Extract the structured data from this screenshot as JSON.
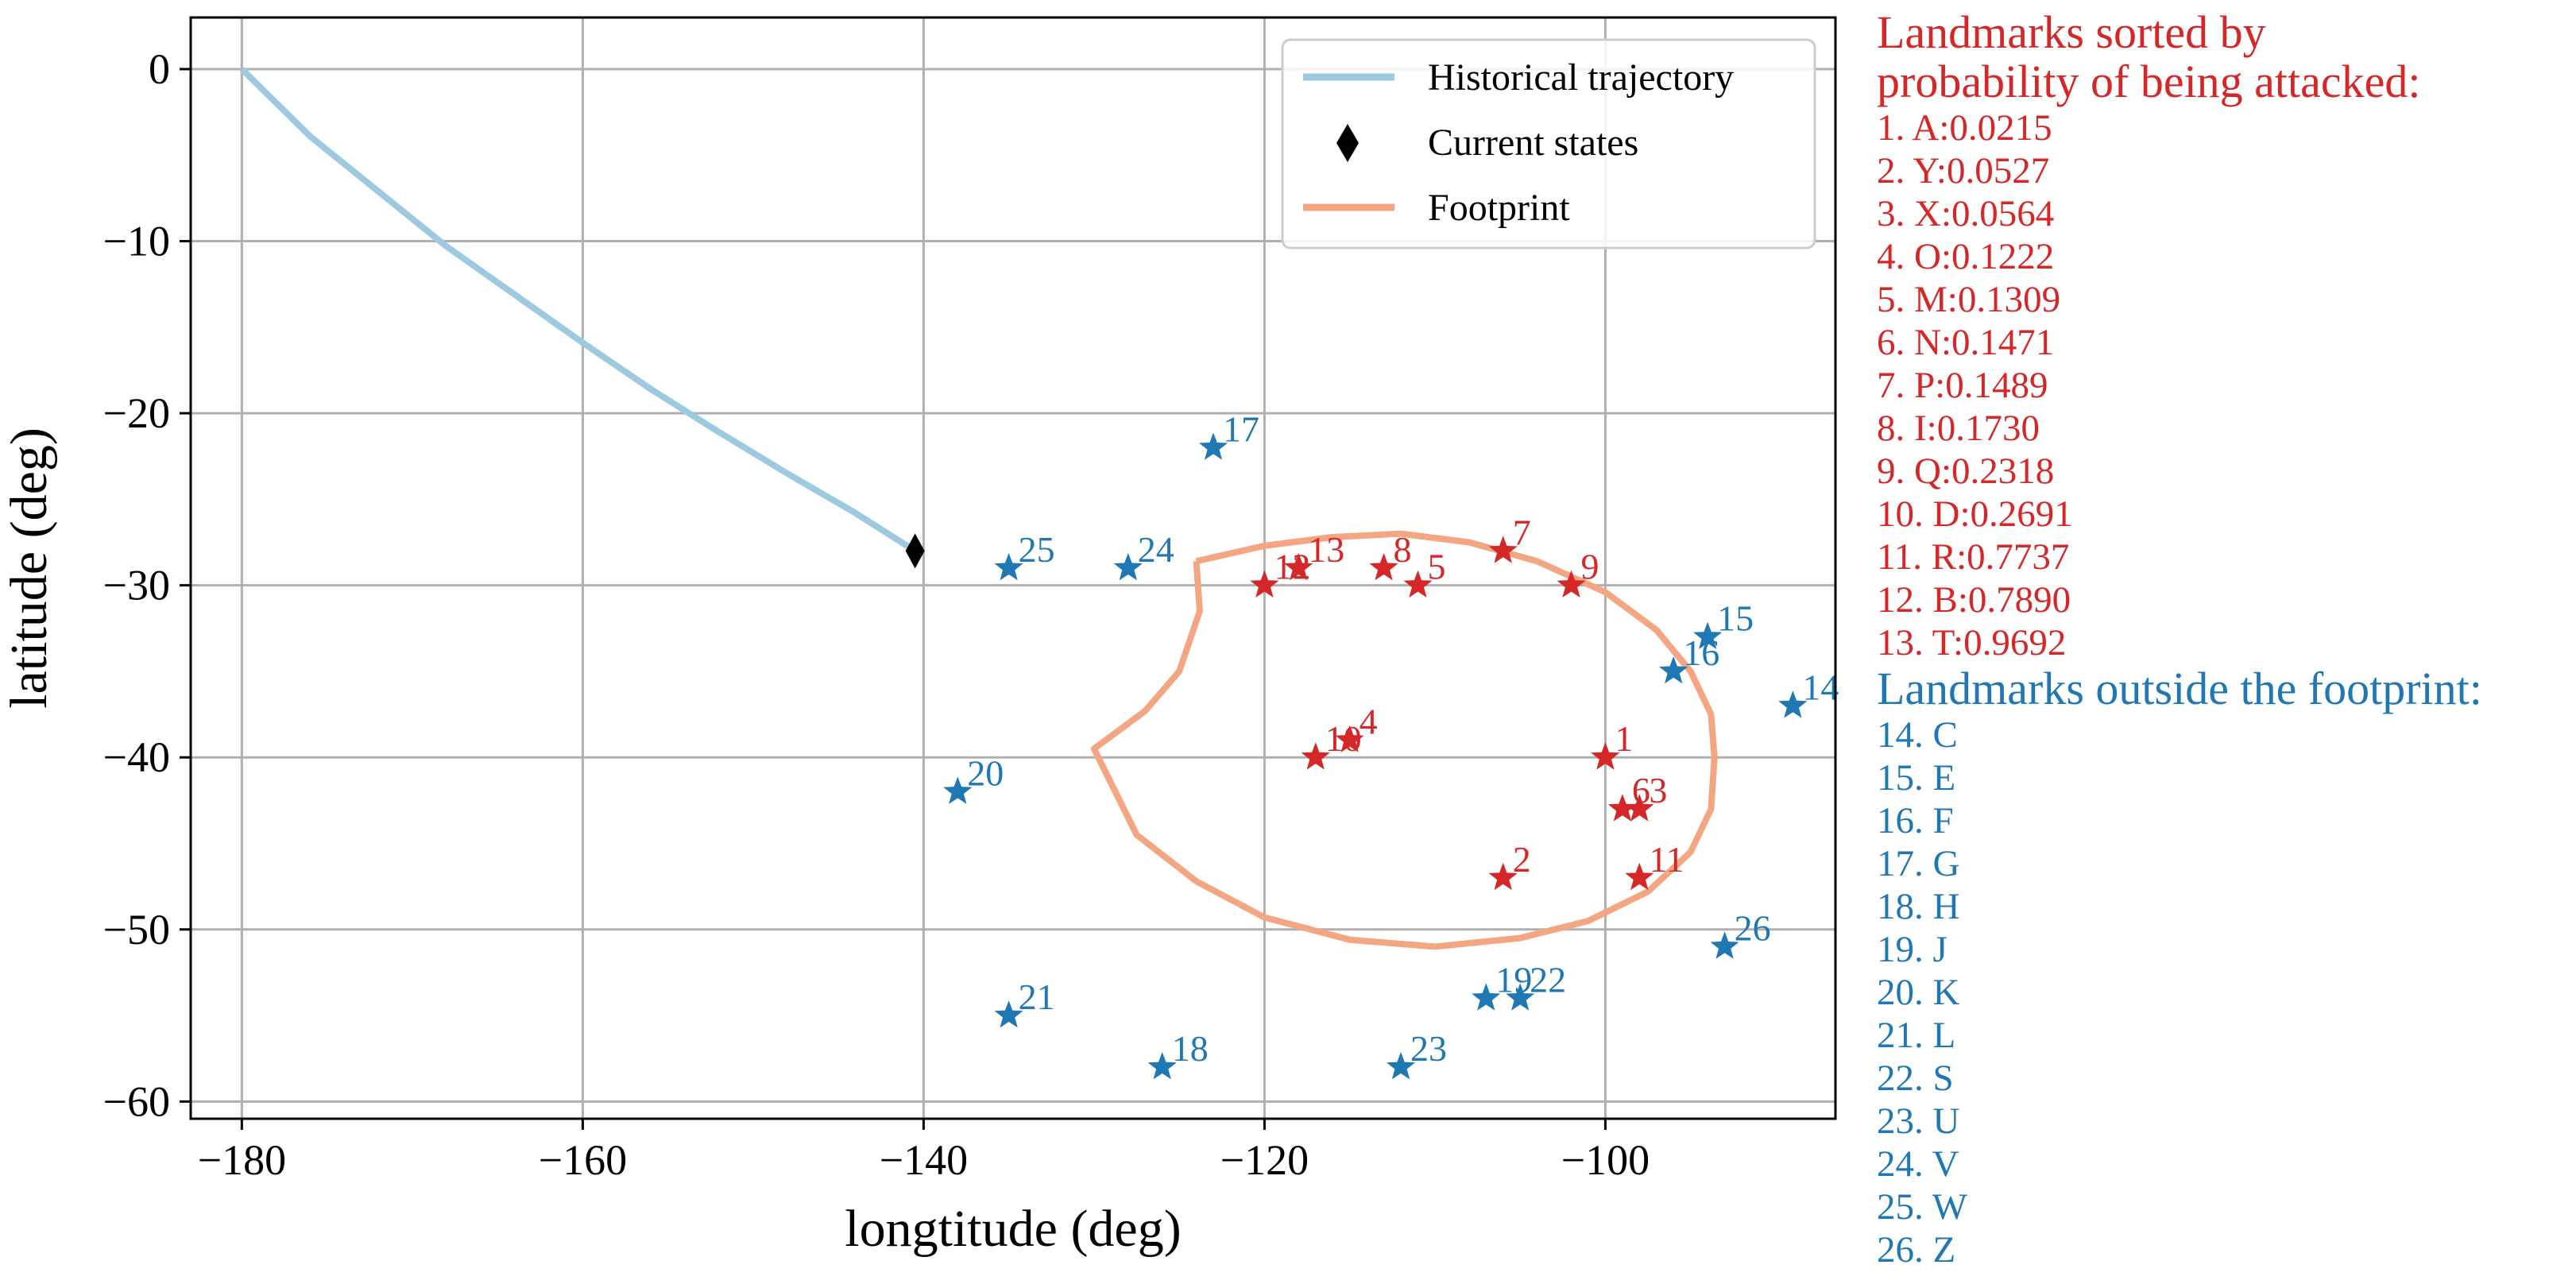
{
  "colors": {
    "inside": "#d62728",
    "outside": "#1f77b4",
    "trajectory": "#9ecae1",
    "footprint": "#f4a582",
    "current": "#000000",
    "grid": "#b0b0b0"
  },
  "sidebar": {
    "inside_title_line1": "Landmarks sorted by",
    "inside_title_line2": "probability of being attacked:",
    "inside_items": [
      "1. A:0.0215",
      "2. Y:0.0527",
      "3. X:0.0564",
      "4. O:0.1222",
      "5. M:0.1309",
      "6. N:0.1471",
      "7. P:0.1489",
      "8. I:0.1730",
      "9. Q:0.2318",
      "10. D:0.2691",
      "11. R:0.7737",
      "12. B:0.7890",
      "13. T:0.9692"
    ],
    "outside_title": "Landmarks outside the footprint:",
    "outside_items": [
      "14. C",
      "15. E",
      "16. F",
      "17. G",
      "18. H",
      "19. J",
      "20. K",
      "21. L",
      "22. S",
      "23. U",
      "24. V",
      "25. W",
      "26. Z"
    ]
  },
  "chart_data": {
    "type": "scatter",
    "xlabel": "longtitude (deg)",
    "ylabel": "latitude (deg)",
    "xlim": [
      -183,
      -86.5
    ],
    "ylim": [
      -61,
      3
    ],
    "xticks": [
      -180,
      -160,
      -140,
      -120,
      -100
    ],
    "yticks": [
      0,
      -10,
      -20,
      -30,
      -40,
      -50,
      -60
    ],
    "grid": true,
    "legend_position": "top-right",
    "legend": [
      {
        "label": "Historical trajectory",
        "kind": "line",
        "color": "#9ecae1"
      },
      {
        "label": "Current states",
        "kind": "diamond",
        "color": "#000000"
      },
      {
        "label": "Footprint",
        "kind": "line",
        "color": "#f4a582"
      }
    ],
    "trajectory": [
      [
        -180,
        0
      ],
      [
        -176,
        -3.9
      ],
      [
        -172,
        -7.1
      ],
      [
        -168,
        -10.3
      ],
      [
        -164,
        -13.1
      ],
      [
        -160,
        -15.9
      ],
      [
        -156,
        -18.6
      ],
      [
        -152,
        -21.1
      ],
      [
        -148,
        -23.5
      ],
      [
        -144,
        -25.8
      ],
      [
        -140.5,
        -28
      ]
    ],
    "current_state": [
      -140.5,
      -28
    ],
    "footprint": [
      [
        -124,
        -28.6
      ],
      [
        -120,
        -27.7
      ],
      [
        -116,
        -27.2
      ],
      [
        -112,
        -27
      ],
      [
        -108,
        -27.5
      ],
      [
        -104,
        -28.6
      ],
      [
        -100,
        -30.4
      ],
      [
        -97,
        -32.6
      ],
      [
        -95,
        -35
      ],
      [
        -93.8,
        -37.5
      ],
      [
        -93.6,
        -40
      ],
      [
        -93.8,
        -43
      ],
      [
        -95,
        -45.5
      ],
      [
        -97.5,
        -47.8
      ],
      [
        -101,
        -49.5
      ],
      [
        -105,
        -50.5
      ],
      [
        -110,
        -51
      ],
      [
        -115,
        -50.6
      ],
      [
        -120,
        -49.3
      ],
      [
        -124,
        -47.2
      ],
      [
        -127.5,
        -44.5
      ],
      [
        -130,
        -39.5
      ],
      [
        -127,
        -37.3
      ],
      [
        -125,
        -35
      ],
      [
        -123.8,
        -31.5
      ],
      [
        -124,
        -28.6
      ]
    ],
    "landmarks_inside": [
      {
        "label": "1",
        "x": -100,
        "y": -40
      },
      {
        "label": "2",
        "x": -106,
        "y": -47
      },
      {
        "label": "3",
        "x": -98,
        "y": -43
      },
      {
        "label": "4",
        "x": -115,
        "y": -39
      },
      {
        "label": "5",
        "x": -111,
        "y": -30
      },
      {
        "label": "6",
        "x": -99,
        "y": -43
      },
      {
        "label": "7",
        "x": -106,
        "y": -28
      },
      {
        "label": "8",
        "x": -113,
        "y": -29
      },
      {
        "label": "9",
        "x": -102,
        "y": -30
      },
      {
        "label": "10",
        "x": -117,
        "y": -40
      },
      {
        "label": "11",
        "x": -98,
        "y": -47
      },
      {
        "label": "12",
        "x": -120,
        "y": -30
      },
      {
        "label": "13",
        "x": -118,
        "y": -29
      }
    ],
    "landmarks_outside": [
      {
        "label": "14",
        "x": -89,
        "y": -37
      },
      {
        "label": "15",
        "x": -94,
        "y": -33
      },
      {
        "label": "16",
        "x": -96,
        "y": -35
      },
      {
        "label": "17",
        "x": -123,
        "y": -22
      },
      {
        "label": "18",
        "x": -126,
        "y": -58
      },
      {
        "label": "19",
        "x": -107,
        "y": -54
      },
      {
        "label": "20",
        "x": -138,
        "y": -42
      },
      {
        "label": "21",
        "x": -135,
        "y": -55
      },
      {
        "label": "22",
        "x": -105,
        "y": -54
      },
      {
        "label": "23",
        "x": -112,
        "y": -58
      },
      {
        "label": "24",
        "x": -128,
        "y": -29
      },
      {
        "label": "25",
        "x": -135,
        "y": -29
      },
      {
        "label": "26",
        "x": -93,
        "y": -51
      }
    ]
  }
}
